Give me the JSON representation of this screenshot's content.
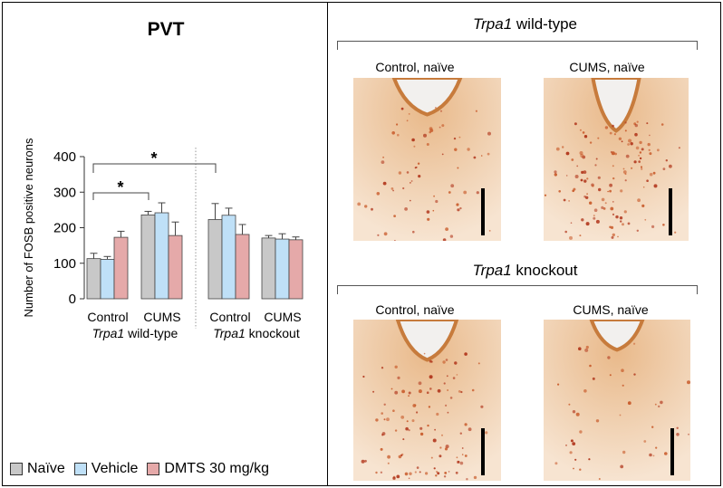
{
  "chart_data": {
    "type": "bar",
    "title": "PVT",
    "ylabel": "Number of FOSB positive neurons",
    "ylim": [
      0,
      400
    ],
    "yticks": [
      0,
      100,
      200,
      300,
      400
    ],
    "categories": [
      "Control",
      "CUMS",
      "Control",
      "CUMS"
    ],
    "groups": [
      "Trpa1 wild-type",
      "Trpa1 knockout"
    ],
    "group_label_italic": "Trpa1",
    "group_label_rest": [
      " wild-type",
      " knockout"
    ],
    "series": [
      {
        "name": "Naïve",
        "color": "#c8c8c8",
        "values": [
          113,
          236,
          223,
          171
        ],
        "errors": [
          15,
          10,
          45,
          7
        ]
      },
      {
        "name": "Vehicle",
        "color": "#bfe0f7",
        "values": [
          111,
          242,
          235,
          168
        ],
        "errors": [
          8,
          28,
          20,
          15
        ]
      },
      {
        "name": "DMTS 30 mg/kg",
        "color": "#e5a9a9",
        "values": [
          173,
          178,
          181,
          166
        ],
        "errors": [
          17,
          38,
          28,
          8
        ]
      }
    ],
    "significance": [
      {
        "label": "*",
        "from": "Control wild-type Naïve",
        "to": "CUMS wild-type Naïve"
      },
      {
        "label": "*",
        "from": "Control wild-type Naïve",
        "to": "Control knockout Naïve"
      }
    ]
  },
  "legend": {
    "items": [
      {
        "label": "Naïve",
        "color": "#c8c8c8"
      },
      {
        "label": "Vehicle",
        "color": "#bfe0f7"
      },
      {
        "label": "DMTS 30 mg/kg",
        "color": "#e5a9a9"
      }
    ]
  },
  "images": {
    "wildtype_title_italic": "Trpa1",
    "wildtype_title_rest": " wild-type",
    "knockout_title_italic": "Trpa1",
    "knockout_title_rest": " knockout",
    "labels": [
      "Control, naïve",
      "CUMS, naïve",
      "Control, naïve",
      "CUMS, naïve"
    ]
  }
}
